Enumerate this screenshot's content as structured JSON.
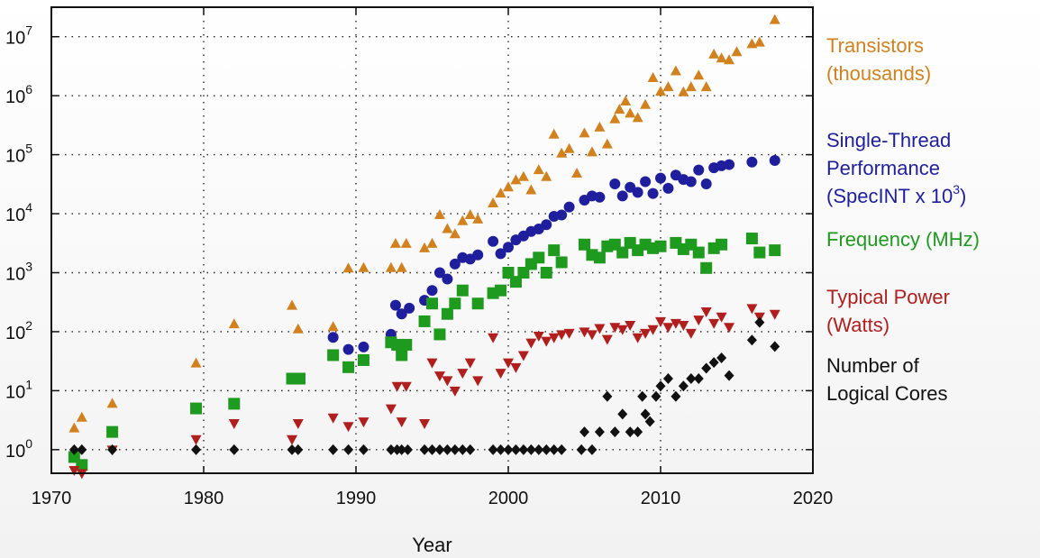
{
  "chart_data": {
    "type": "scatter",
    "title": "",
    "xlabel": "Year",
    "ylabel": "",
    "xlim": [
      1970,
      2020
    ],
    "ylim_log10": [
      -0.4,
      7.5
    ],
    "y_scale": "log",
    "x_ticks": [
      1970,
      1980,
      1990,
      2000,
      2010,
      2020
    ],
    "y_ticks": [
      {
        "exp": 0,
        "base": "10",
        "sup": "0"
      },
      {
        "exp": 1,
        "base": "10",
        "sup": "1"
      },
      {
        "exp": 2,
        "base": "10",
        "sup": "2"
      },
      {
        "exp": 3,
        "base": "10",
        "sup": "3"
      },
      {
        "exp": 4,
        "base": "10",
        "sup": "4"
      },
      {
        "exp": 5,
        "base": "10",
        "sup": "5"
      },
      {
        "exp": 6,
        "base": "10",
        "sup": "6"
      },
      {
        "exp": 7,
        "base": "10",
        "sup": "7"
      }
    ],
    "legend_placement": "right",
    "series": [
      {
        "name": "Transistors (thousands)",
        "legend_lines": [
          "Transistors",
          "(thousands)"
        ],
        "color": "#d2811f",
        "marker": "triangle-up",
        "points": [
          [
            1971.5,
            2.3
          ],
          [
            1972,
            3.5
          ],
          [
            1974,
            6
          ],
          [
            1979.5,
            29
          ],
          [
            1982,
            134
          ],
          [
            1985.8,
            275
          ],
          [
            1986.2,
            110
          ],
          [
            1988.5,
            120
          ],
          [
            1989.5,
            1180
          ],
          [
            1990.5,
            1200
          ],
          [
            1992.3,
            1200
          ],
          [
            1992.6,
            3100
          ],
          [
            1993,
            1200
          ],
          [
            1993.3,
            3100
          ],
          [
            1994.5,
            2600
          ],
          [
            1995,
            3100
          ],
          [
            1995.5,
            9500
          ],
          [
            1996,
            5500
          ],
          [
            1996.5,
            4500
          ],
          [
            1997,
            7500
          ],
          [
            1997.5,
            9500
          ],
          [
            1998,
            8000
          ],
          [
            1999,
            15000
          ],
          [
            1999.5,
            22000
          ],
          [
            2000,
            28000
          ],
          [
            2000.5,
            37000
          ],
          [
            2001,
            42000
          ],
          [
            2001.5,
            25000
          ],
          [
            2002,
            55000
          ],
          [
            2002.5,
            42000
          ],
          [
            2003,
            220000
          ],
          [
            2003.5,
            105000
          ],
          [
            2004,
            125000
          ],
          [
            2004.5,
            48000
          ],
          [
            2005,
            230000
          ],
          [
            2005.5,
            110000
          ],
          [
            2006,
            290000
          ],
          [
            2006.5,
            150000
          ],
          [
            2007,
            400000
          ],
          [
            2007.3,
            580000
          ],
          [
            2007.7,
            800000
          ],
          [
            2008,
            500000
          ],
          [
            2008.5,
            420000
          ],
          [
            2009,
            700000
          ],
          [
            2009.5,
            2000000
          ],
          [
            2010,
            1170000
          ],
          [
            2010.5,
            1400000
          ],
          [
            2011,
            2600000
          ],
          [
            2011.5,
            1150000
          ],
          [
            2012,
            1400000
          ],
          [
            2012.5,
            2200000
          ],
          [
            2013,
            1400000
          ],
          [
            2013.5,
            5000000
          ],
          [
            2014,
            4300000
          ],
          [
            2014.5,
            4000000
          ],
          [
            2015,
            5500000
          ],
          [
            2016,
            7500000
          ],
          [
            2016.5,
            8000000
          ],
          [
            2017.5,
            19200000
          ]
        ]
      },
      {
        "name": "Single-Thread Performance (SpecINT x 10^3)",
        "legend_lines": [
          "Single-Thread",
          "Performance",
          "(SpecINT x 10"
        ],
        "legend_sup": "3",
        "legend_tail": ")",
        "color": "#1f1f9e",
        "marker": "circle",
        "points": [
          [
            1988.5,
            80
          ],
          [
            1989.5,
            50
          ],
          [
            1990.5,
            55
          ],
          [
            1992.3,
            90
          ],
          [
            1992.6,
            280
          ],
          [
            1993,
            200
          ],
          [
            1993.5,
            250
          ],
          [
            1994.5,
            340
          ],
          [
            1995,
            500
          ],
          [
            1995.5,
            1000
          ],
          [
            1996,
            780
          ],
          [
            1996.5,
            1400
          ],
          [
            1997,
            1800
          ],
          [
            1997.5,
            1700
          ],
          [
            1998,
            2000
          ],
          [
            1999,
            3400
          ],
          [
            1999.5,
            2100
          ],
          [
            2000,
            2700
          ],
          [
            2000.5,
            3600
          ],
          [
            2001,
            4200
          ],
          [
            2001.5,
            5000
          ],
          [
            2002,
            5500
          ],
          [
            2002.5,
            6500
          ],
          [
            2003,
            9000
          ],
          [
            2003.5,
            9500
          ],
          [
            2004,
            13000
          ],
          [
            2005,
            17000
          ],
          [
            2005.5,
            20000
          ],
          [
            2006,
            19000
          ],
          [
            2007,
            32000
          ],
          [
            2007.5,
            20000
          ],
          [
            2008,
            28000
          ],
          [
            2008.5,
            23000
          ],
          [
            2009,
            35000
          ],
          [
            2009.5,
            22000
          ],
          [
            2010,
            40000
          ],
          [
            2010.5,
            27000
          ],
          [
            2011,
            45000
          ],
          [
            2011.5,
            38000
          ],
          [
            2012,
            35000
          ],
          [
            2012.5,
            55000
          ],
          [
            2013,
            32000
          ],
          [
            2013.5,
            60000
          ],
          [
            2014,
            65000
          ],
          [
            2014.5,
            68000
          ],
          [
            2016,
            75000
          ],
          [
            2017.5,
            80000
          ]
        ]
      },
      {
        "name": "Frequency (MHz)",
        "legend_lines": [
          "Frequency (MHz)"
        ],
        "color": "#1e9a1e",
        "marker": "square",
        "points": [
          [
            1971.5,
            0.75
          ],
          [
            1972,
            0.55
          ],
          [
            1974,
            2
          ],
          [
            1979.5,
            5
          ],
          [
            1982,
            6
          ],
          [
            1985.8,
            16
          ],
          [
            1986.3,
            16
          ],
          [
            1988.5,
            40
          ],
          [
            1989.5,
            25
          ],
          [
            1990.5,
            33
          ],
          [
            1992.3,
            66
          ],
          [
            1992.7,
            60
          ],
          [
            1993,
            40
          ],
          [
            1993.3,
            60
          ],
          [
            1994.5,
            150
          ],
          [
            1995,
            300
          ],
          [
            1995.5,
            90
          ],
          [
            1996,
            200
          ],
          [
            1996.5,
            300
          ],
          [
            1997,
            500
          ],
          [
            1998,
            300
          ],
          [
            1999,
            450
          ],
          [
            1999.5,
            500
          ],
          [
            2000,
            1000
          ],
          [
            2000.5,
            700
          ],
          [
            2001,
            1000
          ],
          [
            2001.5,
            1400
          ],
          [
            2002,
            1800
          ],
          [
            2002.5,
            1000
          ],
          [
            2003,
            2400
          ],
          [
            2003.5,
            1500
          ],
          [
            2005,
            3000
          ],
          [
            2005.5,
            2000
          ],
          [
            2006,
            1800
          ],
          [
            2006.5,
            2800
          ],
          [
            2007,
            3000
          ],
          [
            2007.5,
            2200
          ],
          [
            2008,
            3200
          ],
          [
            2008.5,
            2400
          ],
          [
            2009,
            3000
          ],
          [
            2009.5,
            2600
          ],
          [
            2010,
            2800
          ],
          [
            2011,
            3200
          ],
          [
            2011.5,
            2500
          ],
          [
            2012,
            3000
          ],
          [
            2012.5,
            2200
          ],
          [
            2013,
            1200
          ],
          [
            2013.5,
            2600
          ],
          [
            2014,
            3000
          ],
          [
            2016,
            3800
          ],
          [
            2016.5,
            2200
          ],
          [
            2017.5,
            2400
          ]
        ]
      },
      {
        "name": "Typical Power (Watts)",
        "legend_lines": [
          "Typical Power",
          "(Watts)"
        ],
        "color": "#b01e1e",
        "marker": "triangle-down",
        "points": [
          [
            1971.5,
            0.45
          ],
          [
            1972,
            0.4
          ],
          [
            1974,
            1
          ],
          [
            1979.5,
            1.5
          ],
          [
            1982,
            2.8
          ],
          [
            1985.8,
            1.5
          ],
          [
            1986.2,
            2.8
          ],
          [
            1988.5,
            3.5
          ],
          [
            1989.5,
            2.5
          ],
          [
            1990.5,
            3
          ],
          [
            1992.3,
            5
          ],
          [
            1992.7,
            12
          ],
          [
            1993,
            3
          ],
          [
            1993.3,
            12
          ],
          [
            1994.5,
            2.8
          ],
          [
            1995,
            30
          ],
          [
            1995.5,
            18
          ],
          [
            1996,
            15
          ],
          [
            1996.5,
            10
          ],
          [
            1997,
            20
          ],
          [
            1997.5,
            30
          ],
          [
            1998,
            15
          ],
          [
            1999,
            80
          ],
          [
            1999.5,
            20
          ],
          [
            2000,
            30
          ],
          [
            2000.5,
            25
          ],
          [
            2001,
            40
          ],
          [
            2001.5,
            65
          ],
          [
            2002,
            85
          ],
          [
            2002.5,
            70
          ],
          [
            2003,
            80
          ],
          [
            2003.5,
            90
          ],
          [
            2004,
            95
          ],
          [
            2005,
            100
          ],
          [
            2005.5,
            90
          ],
          [
            2006,
            115
          ],
          [
            2006.5,
            75
          ],
          [
            2007,
            120
          ],
          [
            2007.5,
            110
          ],
          [
            2008,
            130
          ],
          [
            2008.5,
            80
          ],
          [
            2009,
            95
          ],
          [
            2009.5,
            110
          ],
          [
            2010,
            150
          ],
          [
            2010.5,
            120
          ],
          [
            2011,
            140
          ],
          [
            2011.5,
            130
          ],
          [
            2012,
            95
          ],
          [
            2012.5,
            160
          ],
          [
            2013,
            220
          ],
          [
            2013.5,
            140
          ],
          [
            2014,
            180
          ],
          [
            2014.5,
            120
          ],
          [
            2016,
            250
          ],
          [
            2016.5,
            180
          ],
          [
            2017.5,
            200
          ]
        ]
      },
      {
        "name": "Number of Logical Cores",
        "legend_lines": [
          "Number of",
          "Logical Cores"
        ],
        "color": "#111111",
        "marker": "diamond",
        "points": [
          [
            1971.5,
            1
          ],
          [
            1972,
            1
          ],
          [
            1974,
            1
          ],
          [
            1979.5,
            1
          ],
          [
            1982,
            1
          ],
          [
            1985.8,
            1
          ],
          [
            1986.2,
            1
          ],
          [
            1988.5,
            1
          ],
          [
            1989.5,
            1
          ],
          [
            1990.5,
            1
          ],
          [
            1992.3,
            1
          ],
          [
            1992.7,
            1
          ],
          [
            1993,
            1
          ],
          [
            1993.4,
            1
          ],
          [
            1994.5,
            1
          ],
          [
            1995,
            1
          ],
          [
            1995.5,
            1
          ],
          [
            1996,
            1
          ],
          [
            1996.5,
            1
          ],
          [
            1997,
            1
          ],
          [
            1997.5,
            1
          ],
          [
            1999,
            1
          ],
          [
            1999.5,
            1
          ],
          [
            2000,
            1
          ],
          [
            2000.5,
            1
          ],
          [
            2001,
            1
          ],
          [
            2001.5,
            1
          ],
          [
            2002,
            1
          ],
          [
            2002.5,
            1
          ],
          [
            2003,
            1
          ],
          [
            2003.5,
            1
          ],
          [
            2004.8,
            1
          ],
          [
            2005,
            2
          ],
          [
            2005.5,
            1
          ],
          [
            2006,
            2
          ],
          [
            2006.5,
            8
          ],
          [
            2007,
            2
          ],
          [
            2007.5,
            4
          ],
          [
            2008,
            2
          ],
          [
            2008.5,
            2
          ],
          [
            2008.8,
            8
          ],
          [
            2009,
            4
          ],
          [
            2009.3,
            3
          ],
          [
            2009.7,
            8
          ],
          [
            2010,
            12
          ],
          [
            2010.5,
            16
          ],
          [
            2011,
            8
          ],
          [
            2011.5,
            12
          ],
          [
            2012,
            16
          ],
          [
            2012.5,
            16
          ],
          [
            2013,
            24
          ],
          [
            2013.5,
            30
          ],
          [
            2014,
            36
          ],
          [
            2014.5,
            18
          ],
          [
            2016,
            72
          ],
          [
            2016.5,
            144
          ],
          [
            2017.5,
            56
          ]
        ]
      }
    ]
  }
}
